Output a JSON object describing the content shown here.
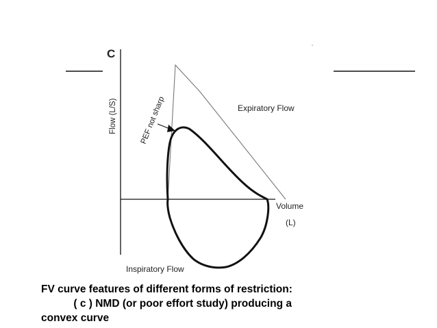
{
  "figure": {
    "panel_label": "C",
    "y_axis_label": "Flow (L/S)",
    "x_axis_label": "Volume",
    "x_axis_unit": "(L)",
    "expiratory_label": "Expiratory Flow",
    "inspiratory_label": "Inspiratory Flow",
    "annotation": "PEF not sharp"
  },
  "caption": {
    "line1": "FV curve features of different forms of restriction:",
    "line2": "           ( c ) NMD (or poor effort study) producing a",
    "line3": "convex curve"
  },
  "colors": {
    "background": "#ffffff",
    "curve": "#111111",
    "reference_line": "#777777",
    "text": "#000000"
  }
}
